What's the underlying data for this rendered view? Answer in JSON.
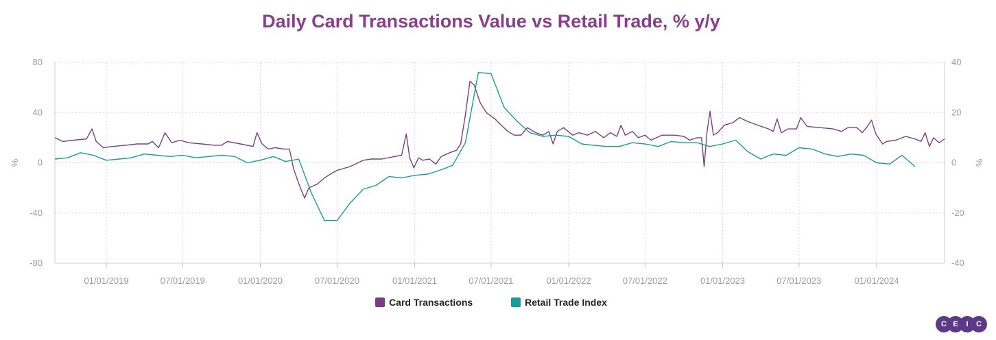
{
  "chart_data": {
    "type": "line",
    "title": "Daily Card Transactions Value vs Retail Trade, % y/y",
    "x_ticks": [
      "01/01/2019",
      "07/01/2019",
      "01/01/2020",
      "07/01/2020",
      "01/01/2021",
      "07/01/2021",
      "01/01/2022",
      "07/01/2022",
      "01/01/2023",
      "07/01/2023",
      "01/01/2024"
    ],
    "x_range": [
      "2018-09-01",
      "2024-06-10"
    ],
    "y_left": {
      "unit": "%",
      "ticks": [
        "80",
        "40",
        "0",
        "-40",
        "-80"
      ],
      "range": [
        -80,
        80
      ]
    },
    "y_right": {
      "unit": "%",
      "ticks": [
        "40",
        "20",
        "0",
        "-20",
        "-40"
      ],
      "range": [
        -40,
        40
      ]
    },
    "grid": true,
    "legend_position": "bottom",
    "series": [
      {
        "name": "Card Transactions",
        "axis": "left",
        "color": "#7d3c86",
        "points": [
          [
            "2018-09-01",
            20
          ],
          [
            "2018-09-20",
            17
          ],
          [
            "2018-10-15",
            18
          ],
          [
            "2018-11-15",
            19
          ],
          [
            "2018-11-28",
            27
          ],
          [
            "2018-12-08",
            17
          ],
          [
            "2018-12-25",
            12
          ],
          [
            "2019-01-15",
            13
          ],
          [
            "2019-02-15",
            14
          ],
          [
            "2019-03-15",
            15
          ],
          [
            "2019-04-10",
            15
          ],
          [
            "2019-04-20",
            17
          ],
          [
            "2019-05-05",
            12
          ],
          [
            "2019-05-20",
            24
          ],
          [
            "2019-06-05",
            16
          ],
          [
            "2019-06-25",
            18
          ],
          [
            "2019-07-15",
            16
          ],
          [
            "2019-08-15",
            15
          ],
          [
            "2019-09-15",
            14
          ],
          [
            "2019-10-01",
            14
          ],
          [
            "2019-10-15",
            17
          ],
          [
            "2019-11-15",
            15
          ],
          [
            "2019-12-15",
            13
          ],
          [
            "2019-12-24",
            24
          ],
          [
            "2020-01-05",
            15
          ],
          [
            "2020-01-20",
            11
          ],
          [
            "2020-02-05",
            12
          ],
          [
            "2020-02-25",
            11
          ],
          [
            "2020-03-10",
            11
          ],
          [
            "2020-03-20",
            -5
          ],
          [
            "2020-04-05",
            -20
          ],
          [
            "2020-04-15",
            -28
          ],
          [
            "2020-04-25",
            -20
          ],
          [
            "2020-05-15",
            -17
          ],
          [
            "2020-06-01",
            -12
          ],
          [
            "2020-06-20",
            -8
          ],
          [
            "2020-07-01",
            -6
          ],
          [
            "2020-08-01",
            -3
          ],
          [
            "2020-09-01",
            2
          ],
          [
            "2020-09-20",
            3
          ],
          [
            "2020-10-15",
            3
          ],
          [
            "2020-11-15",
            5
          ],
          [
            "2020-12-01",
            6
          ],
          [
            "2020-12-12",
            23
          ],
          [
            "2020-12-20",
            4
          ],
          [
            "2020-12-30",
            -4
          ],
          [
            "2021-01-10",
            4
          ],
          [
            "2021-01-20",
            2
          ],
          [
            "2021-02-05",
            3
          ],
          [
            "2021-02-20",
            -1
          ],
          [
            "2021-03-05",
            5
          ],
          [
            "2021-03-25",
            8
          ],
          [
            "2021-04-10",
            10
          ],
          [
            "2021-04-20",
            15
          ],
          [
            "2021-05-01",
            38
          ],
          [
            "2021-05-12",
            65
          ],
          [
            "2021-05-22",
            62
          ],
          [
            "2021-06-05",
            48
          ],
          [
            "2021-06-20",
            40
          ],
          [
            "2021-07-10",
            35
          ],
          [
            "2021-07-25",
            30
          ],
          [
            "2021-08-10",
            25
          ],
          [
            "2021-08-25",
            22
          ],
          [
            "2021-09-10",
            22
          ],
          [
            "2021-09-25",
            28
          ],
          [
            "2021-10-15",
            24
          ],
          [
            "2021-11-01",
            22
          ],
          [
            "2021-11-15",
            25
          ],
          [
            "2021-11-25",
            15
          ],
          [
            "2021-12-05",
            25
          ],
          [
            "2021-12-20",
            28
          ],
          [
            "2022-01-10",
            22
          ],
          [
            "2022-01-25",
            24
          ],
          [
            "2022-02-15",
            22
          ],
          [
            "2022-03-05",
            25
          ],
          [
            "2022-03-25",
            20
          ],
          [
            "2022-04-10",
            24
          ],
          [
            "2022-04-25",
            21
          ],
          [
            "2022-05-05",
            30
          ],
          [
            "2022-05-15",
            22
          ],
          [
            "2022-06-01",
            25
          ],
          [
            "2022-06-15",
            20
          ],
          [
            "2022-07-01",
            22
          ],
          [
            "2022-07-15",
            18
          ],
          [
            "2022-08-10",
            22
          ],
          [
            "2022-09-10",
            22
          ],
          [
            "2022-10-01",
            21
          ],
          [
            "2022-10-15",
            18
          ],
          [
            "2022-11-01",
            20
          ],
          [
            "2022-11-12",
            20
          ],
          [
            "2022-11-18",
            -3
          ],
          [
            "2022-11-25",
            25
          ],
          [
            "2022-12-02",
            41
          ],
          [
            "2022-12-10",
            22
          ],
          [
            "2022-12-20",
            24
          ],
          [
            "2023-01-05",
            30
          ],
          [
            "2023-01-25",
            32
          ],
          [
            "2023-02-10",
            36
          ],
          [
            "2023-03-01",
            33
          ],
          [
            "2023-03-25",
            30
          ],
          [
            "2023-04-20",
            27
          ],
          [
            "2023-05-01",
            25
          ],
          [
            "2023-05-10",
            35
          ],
          [
            "2023-05-20",
            24
          ],
          [
            "2023-06-05",
            27
          ],
          [
            "2023-06-25",
            27
          ],
          [
            "2023-07-05",
            36
          ],
          [
            "2023-07-20",
            29
          ],
          [
            "2023-08-20",
            28
          ],
          [
            "2023-09-20",
            27
          ],
          [
            "2023-10-10",
            25
          ],
          [
            "2023-10-25",
            28
          ],
          [
            "2023-11-15",
            28
          ],
          [
            "2023-11-28",
            24
          ],
          [
            "2023-12-10",
            29
          ],
          [
            "2023-12-20",
            34
          ],
          [
            "2023-12-30",
            23
          ],
          [
            "2024-01-15",
            15
          ],
          [
            "2024-01-25",
            17
          ],
          [
            "2024-02-15",
            18
          ],
          [
            "2024-03-10",
            21
          ],
          [
            "2024-04-01",
            19
          ],
          [
            "2024-04-15",
            17
          ],
          [
            "2024-04-25",
            24
          ],
          [
            "2024-05-05",
            13
          ],
          [
            "2024-05-15",
            20
          ],
          [
            "2024-05-28",
            16
          ],
          [
            "2024-06-10",
            19
          ]
        ]
      },
      {
        "name": "Retail Trade Index",
        "axis": "right",
        "color": "#1a9a9a",
        "points": [
          [
            "2018-09-01",
            1.5
          ],
          [
            "2018-10-01",
            2.0
          ],
          [
            "2018-11-01",
            4.0
          ],
          [
            "2018-12-01",
            3.0
          ],
          [
            "2019-01-01",
            1.0
          ],
          [
            "2019-02-01",
            1.5
          ],
          [
            "2019-03-01",
            2.0
          ],
          [
            "2019-04-01",
            3.5
          ],
          [
            "2019-05-01",
            3.0
          ],
          [
            "2019-06-01",
            2.5
          ],
          [
            "2019-07-01",
            3.0
          ],
          [
            "2019-08-01",
            2.0
          ],
          [
            "2019-09-01",
            2.5
          ],
          [
            "2019-10-01",
            3.0
          ],
          [
            "2019-11-01",
            2.5
          ],
          [
            "2019-12-01",
            0.0
          ],
          [
            "2020-01-01",
            1.0
          ],
          [
            "2020-02-01",
            2.5
          ],
          [
            "2020-03-01",
            0.5
          ],
          [
            "2020-04-01",
            1.5
          ],
          [
            "2020-05-01",
            -12.0
          ],
          [
            "2020-06-01",
            -23.0
          ],
          [
            "2020-07-01",
            -23.0
          ],
          [
            "2020-08-01",
            -16.0
          ],
          [
            "2020-09-01",
            -10.5
          ],
          [
            "2020-10-01",
            -9.0
          ],
          [
            "2020-11-01",
            -5.5
          ],
          [
            "2020-12-01",
            -6.0
          ],
          [
            "2021-01-01",
            -5.0
          ],
          [
            "2021-02-01",
            -4.5
          ],
          [
            "2021-03-01",
            -3.0
          ],
          [
            "2021-04-01",
            -1.0
          ],
          [
            "2021-05-01",
            8.0
          ],
          [
            "2021-06-01",
            36.0
          ],
          [
            "2021-07-01",
            35.5
          ],
          [
            "2021-08-01",
            22.0
          ],
          [
            "2021-09-01",
            16.5
          ],
          [
            "2021-10-01",
            12.0
          ],
          [
            "2021-11-01",
            10.5
          ],
          [
            "2021-12-01",
            11.0
          ],
          [
            "2022-01-01",
            10.5
          ],
          [
            "2022-02-01",
            7.5
          ],
          [
            "2022-03-01",
            7.0
          ],
          [
            "2022-04-01",
            6.5
          ],
          [
            "2022-05-01",
            6.5
          ],
          [
            "2022-06-01",
            8.0
          ],
          [
            "2022-07-01",
            7.5
          ],
          [
            "2022-08-01",
            6.5
          ],
          [
            "2022-09-01",
            8.5
          ],
          [
            "2022-10-01",
            8.0
          ],
          [
            "2022-11-01",
            8.0
          ],
          [
            "2022-12-01",
            6.5
          ],
          [
            "2023-01-01",
            7.5
          ],
          [
            "2023-02-01",
            9.0
          ],
          [
            "2023-03-01",
            4.5
          ],
          [
            "2023-04-01",
            1.5
          ],
          [
            "2023-05-01",
            3.5
          ],
          [
            "2023-06-01",
            3.0
          ],
          [
            "2023-07-01",
            6.0
          ],
          [
            "2023-08-01",
            5.5
          ],
          [
            "2023-09-01",
            3.5
          ],
          [
            "2023-10-01",
            2.5
          ],
          [
            "2023-11-01",
            3.5
          ],
          [
            "2023-12-01",
            3.0
          ],
          [
            "2024-01-01",
            0.0
          ],
          [
            "2024-02-01",
            -0.5
          ],
          [
            "2024-03-01",
            3.0
          ],
          [
            "2024-04-01",
            -1.5
          ]
        ]
      }
    ]
  },
  "logo": {
    "letters": [
      "C",
      "E",
      "I",
      "C"
    ],
    "color": "#5b3a86"
  }
}
